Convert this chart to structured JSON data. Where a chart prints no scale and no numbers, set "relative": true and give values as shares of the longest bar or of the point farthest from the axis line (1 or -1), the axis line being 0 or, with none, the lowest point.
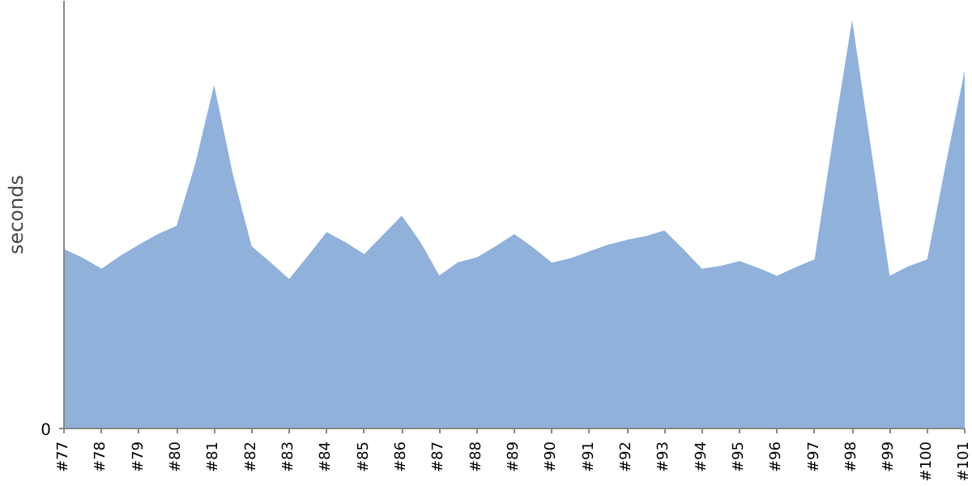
{
  "chart_data": {
    "type": "area",
    "ylabel": "seconds",
    "relative": true,
    "annotations": [
      "0"
    ],
    "categories": [
      "#77",
      null,
      "#78",
      null,
      "#79",
      null,
      "#80",
      null,
      "#81",
      null,
      "#82",
      null,
      "#83",
      null,
      "#84",
      null,
      "#85",
      null,
      "#86",
      null,
      "#87",
      null,
      "#88",
      null,
      "#89",
      null,
      "#90",
      null,
      "#91",
      null,
      "#92",
      null,
      "#93",
      null,
      "#94",
      null,
      "#95",
      null,
      "#96",
      null,
      "#97",
      null,
      "#98",
      null,
      "#99",
      null,
      "#100",
      null,
      "#101"
    ],
    "series": [
      {
        "color": "#8fb1da",
        "values": [
          0.439,
          0.418,
          0.391,
          0.423,
          0.45,
          0.476,
          0.496,
          0.649,
          0.841,
          0.622,
          0.446,
          0.407,
          0.366,
          0.423,
          0.481,
          0.456,
          0.427,
          0.474,
          0.521,
          0.456,
          0.375,
          0.407,
          0.419,
          0.446,
          0.476,
          0.443,
          0.406,
          0.417,
          0.434,
          0.45,
          0.462,
          0.471,
          0.485,
          0.439,
          0.391,
          0.398,
          0.41,
          0.393,
          0.374,
          0.395,
          0.414,
          0.715,
          1,
          0.688,
          0.374,
          0.397,
          0.414,
          0.649,
          0.877
        ]
      }
    ],
    "grid": false
  }
}
